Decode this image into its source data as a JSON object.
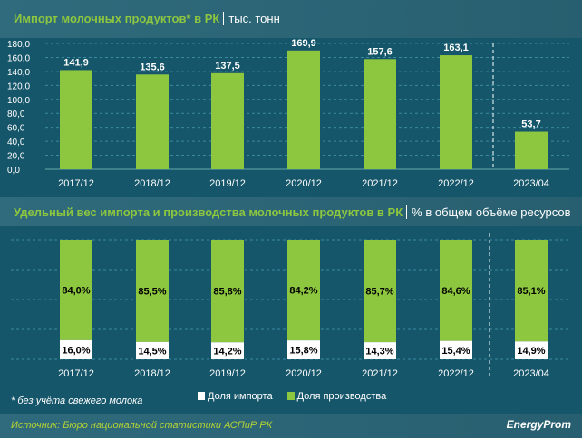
{
  "chart_data": [
    {
      "type": "bar",
      "title": "Импорт молочных продуктов* в РК",
      "unit": "тыс. тонн",
      "categories": [
        "2017/12",
        "2018/12",
        "2019/12",
        "2020/12",
        "2021/12",
        "2022/12",
        "2023/04"
      ],
      "values": [
        141.9,
        135.6,
        137.5,
        169.9,
        157.6,
        163.1,
        53.7
      ],
      "value_labels": [
        "141,9",
        "135,6",
        "137,5",
        "169,9",
        "157,6",
        "163,1",
        "53,7"
      ],
      "ylim": [
        0,
        180
      ],
      "yticks": [
        "0,0",
        "20,0",
        "40,0",
        "60,0",
        "80,0",
        "100,0",
        "120,0",
        "140,0",
        "160,0",
        "180,0"
      ],
      "grid": true
    },
    {
      "type": "bar",
      "stacked": true,
      "title": "Удельный вес импорта и производства молочных продуктов в РК",
      "unit": "% в общем объёме ресурсов",
      "categories": [
        "2017/12",
        "2018/12",
        "2019/12",
        "2020/12",
        "2021/12",
        "2022/12",
        "2023/04"
      ],
      "series": [
        {
          "name": "Доля импорта",
          "values": [
            16.0,
            14.5,
            14.2,
            15.8,
            14.3,
            15.4,
            14.9
          ],
          "labels": [
            "16,0%",
            "14,5%",
            "14,2%",
            "15,8%",
            "14,3%",
            "15,4%",
            "14,9%"
          ]
        },
        {
          "name": "Доля производства",
          "values": [
            84.0,
            85.5,
            85.8,
            84.2,
            85.7,
            84.6,
            85.1
          ],
          "labels": [
            "84,0%",
            "85,5%",
            "85,8%",
            "84,2%",
            "85,7%",
            "84,6%",
            "85,1%"
          ]
        }
      ],
      "ylim": [
        0,
        100
      ],
      "legend": "bottom"
    }
  ],
  "colors": {
    "green": "#8dc63f",
    "white": "#ffffff"
  },
  "footnote": "* без учёта свежего молока",
  "source": "Источник: Бюро национальной статистики АСПиР РК",
  "logo": "EnergyProm"
}
